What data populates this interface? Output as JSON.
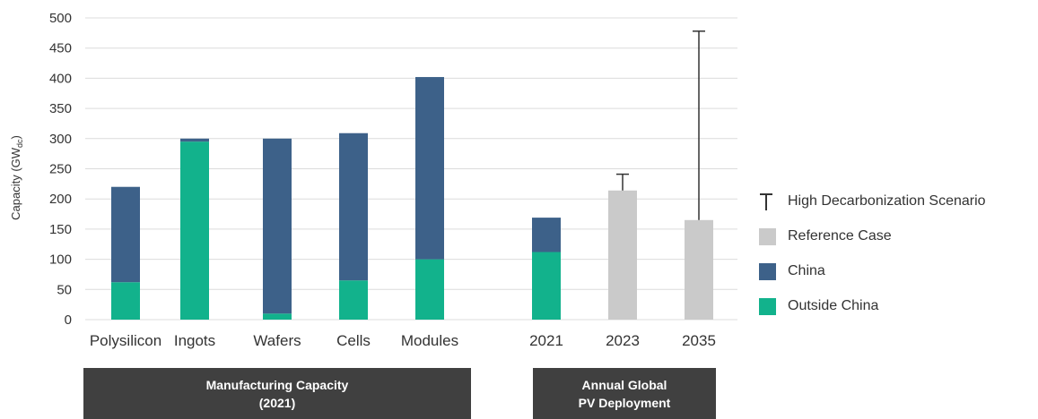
{
  "chart_data": {
    "type": "bar",
    "stacked": true,
    "ylabel": "Capacity (GW",
    "ylabel_sub": "dc",
    "ylabel_close": ")",
    "ylim": [
      0,
      500
    ],
    "yticks": [
      "0",
      "50",
      "100",
      "150",
      "200",
      "250",
      "300",
      "350",
      "400",
      "450",
      "500"
    ],
    "grid": true,
    "categories": [
      "Polysilicon",
      "Ingots",
      "Wafers",
      "Cells",
      "Modules",
      "2021",
      "2023",
      "2035"
    ],
    "series": [
      {
        "name": "Outside China",
        "color": "#12b28c",
        "values": [
          62,
          295,
          10,
          65,
          100,
          112,
          0,
          0
        ]
      },
      {
        "name": "China",
        "color": "#3d6189",
        "values": [
          158,
          5,
          290,
          244,
          302,
          57,
          0,
          0
        ]
      },
      {
        "name": "Reference Case",
        "color": "#cacaca",
        "values": [
          0,
          0,
          0,
          0,
          0,
          0,
          214,
          165
        ]
      }
    ],
    "error_bars": [
      {
        "category": "2023",
        "high": 241
      },
      {
        "category": "2035",
        "high": 478
      }
    ],
    "groups": [
      {
        "line1": "Manufacturing Capacity",
        "line2": "(2021)",
        "categories": [
          "Polysilicon",
          "Ingots",
          "Wafers",
          "Cells",
          "Modules"
        ]
      },
      {
        "line1": "Annual Global",
        "line2": "PV Deployment",
        "categories": [
          "2021",
          "2023",
          "2035"
        ]
      }
    ],
    "legend": {
      "position": "right",
      "items": [
        {
          "label": "High Decarbonization Scenario",
          "kind": "errorbar",
          "color": "#333333"
        },
        {
          "label": "Reference Case",
          "kind": "swatch",
          "color": "#cacaca"
        },
        {
          "label": "China",
          "kind": "swatch",
          "color": "#3d6189"
        },
        {
          "label": "Outside China",
          "kind": "swatch",
          "color": "#12b28c"
        }
      ]
    }
  }
}
